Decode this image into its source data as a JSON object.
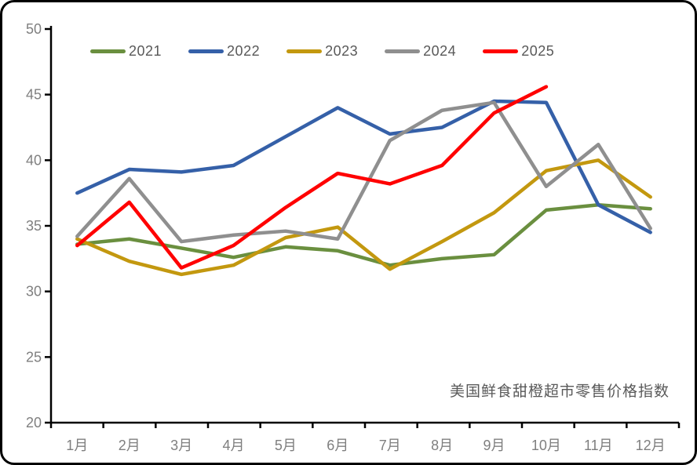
{
  "chart_data": {
    "type": "line",
    "title": "",
    "annotation": "美国鲜食甜橙超市零售价格指数",
    "categories": [
      "1月",
      "2月",
      "3月",
      "4月",
      "5月",
      "6月",
      "7月",
      "8月",
      "9月",
      "10月",
      "11月",
      "12月"
    ],
    "xlabel": "",
    "ylabel": "",
    "ylim": [
      20,
      50
    ],
    "yticks": [
      50,
      45,
      40,
      35,
      30,
      25,
      20
    ],
    "grid": false,
    "legend_position": "top",
    "axis_color": "#000000",
    "tick_label_color": "#7F7F7F",
    "annotation_color": "#595959",
    "series": [
      {
        "name": "2021",
        "color": "#6A8F3F",
        "values": [
          33.6,
          34.0,
          33.3,
          32.6,
          33.4,
          33.1,
          32.0,
          32.5,
          32.8,
          36.2,
          36.6,
          36.3
        ]
      },
      {
        "name": "2022",
        "color": "#3560A8",
        "values": [
          37.5,
          39.3,
          39.1,
          39.6,
          41.8,
          44.0,
          42.0,
          42.5,
          44.5,
          44.4,
          36.6,
          34.5
        ]
      },
      {
        "name": "2023",
        "color": "#C3980F",
        "values": [
          34.0,
          32.3,
          31.3,
          32.0,
          34.1,
          34.9,
          31.7,
          33.8,
          36.0,
          39.2,
          40.0,
          37.2
        ]
      },
      {
        "name": "2024",
        "color": "#8F8F8F",
        "values": [
          34.2,
          38.6,
          33.8,
          34.3,
          34.6,
          34.0,
          41.5,
          43.8,
          44.4,
          38.0,
          41.2,
          34.8
        ]
      },
      {
        "name": "2025",
        "color": "#FF0000",
        "values": [
          33.5,
          36.8,
          31.8,
          33.5,
          36.4,
          39.0,
          38.2,
          39.6,
          43.6,
          45.6,
          null,
          null
        ]
      }
    ]
  }
}
